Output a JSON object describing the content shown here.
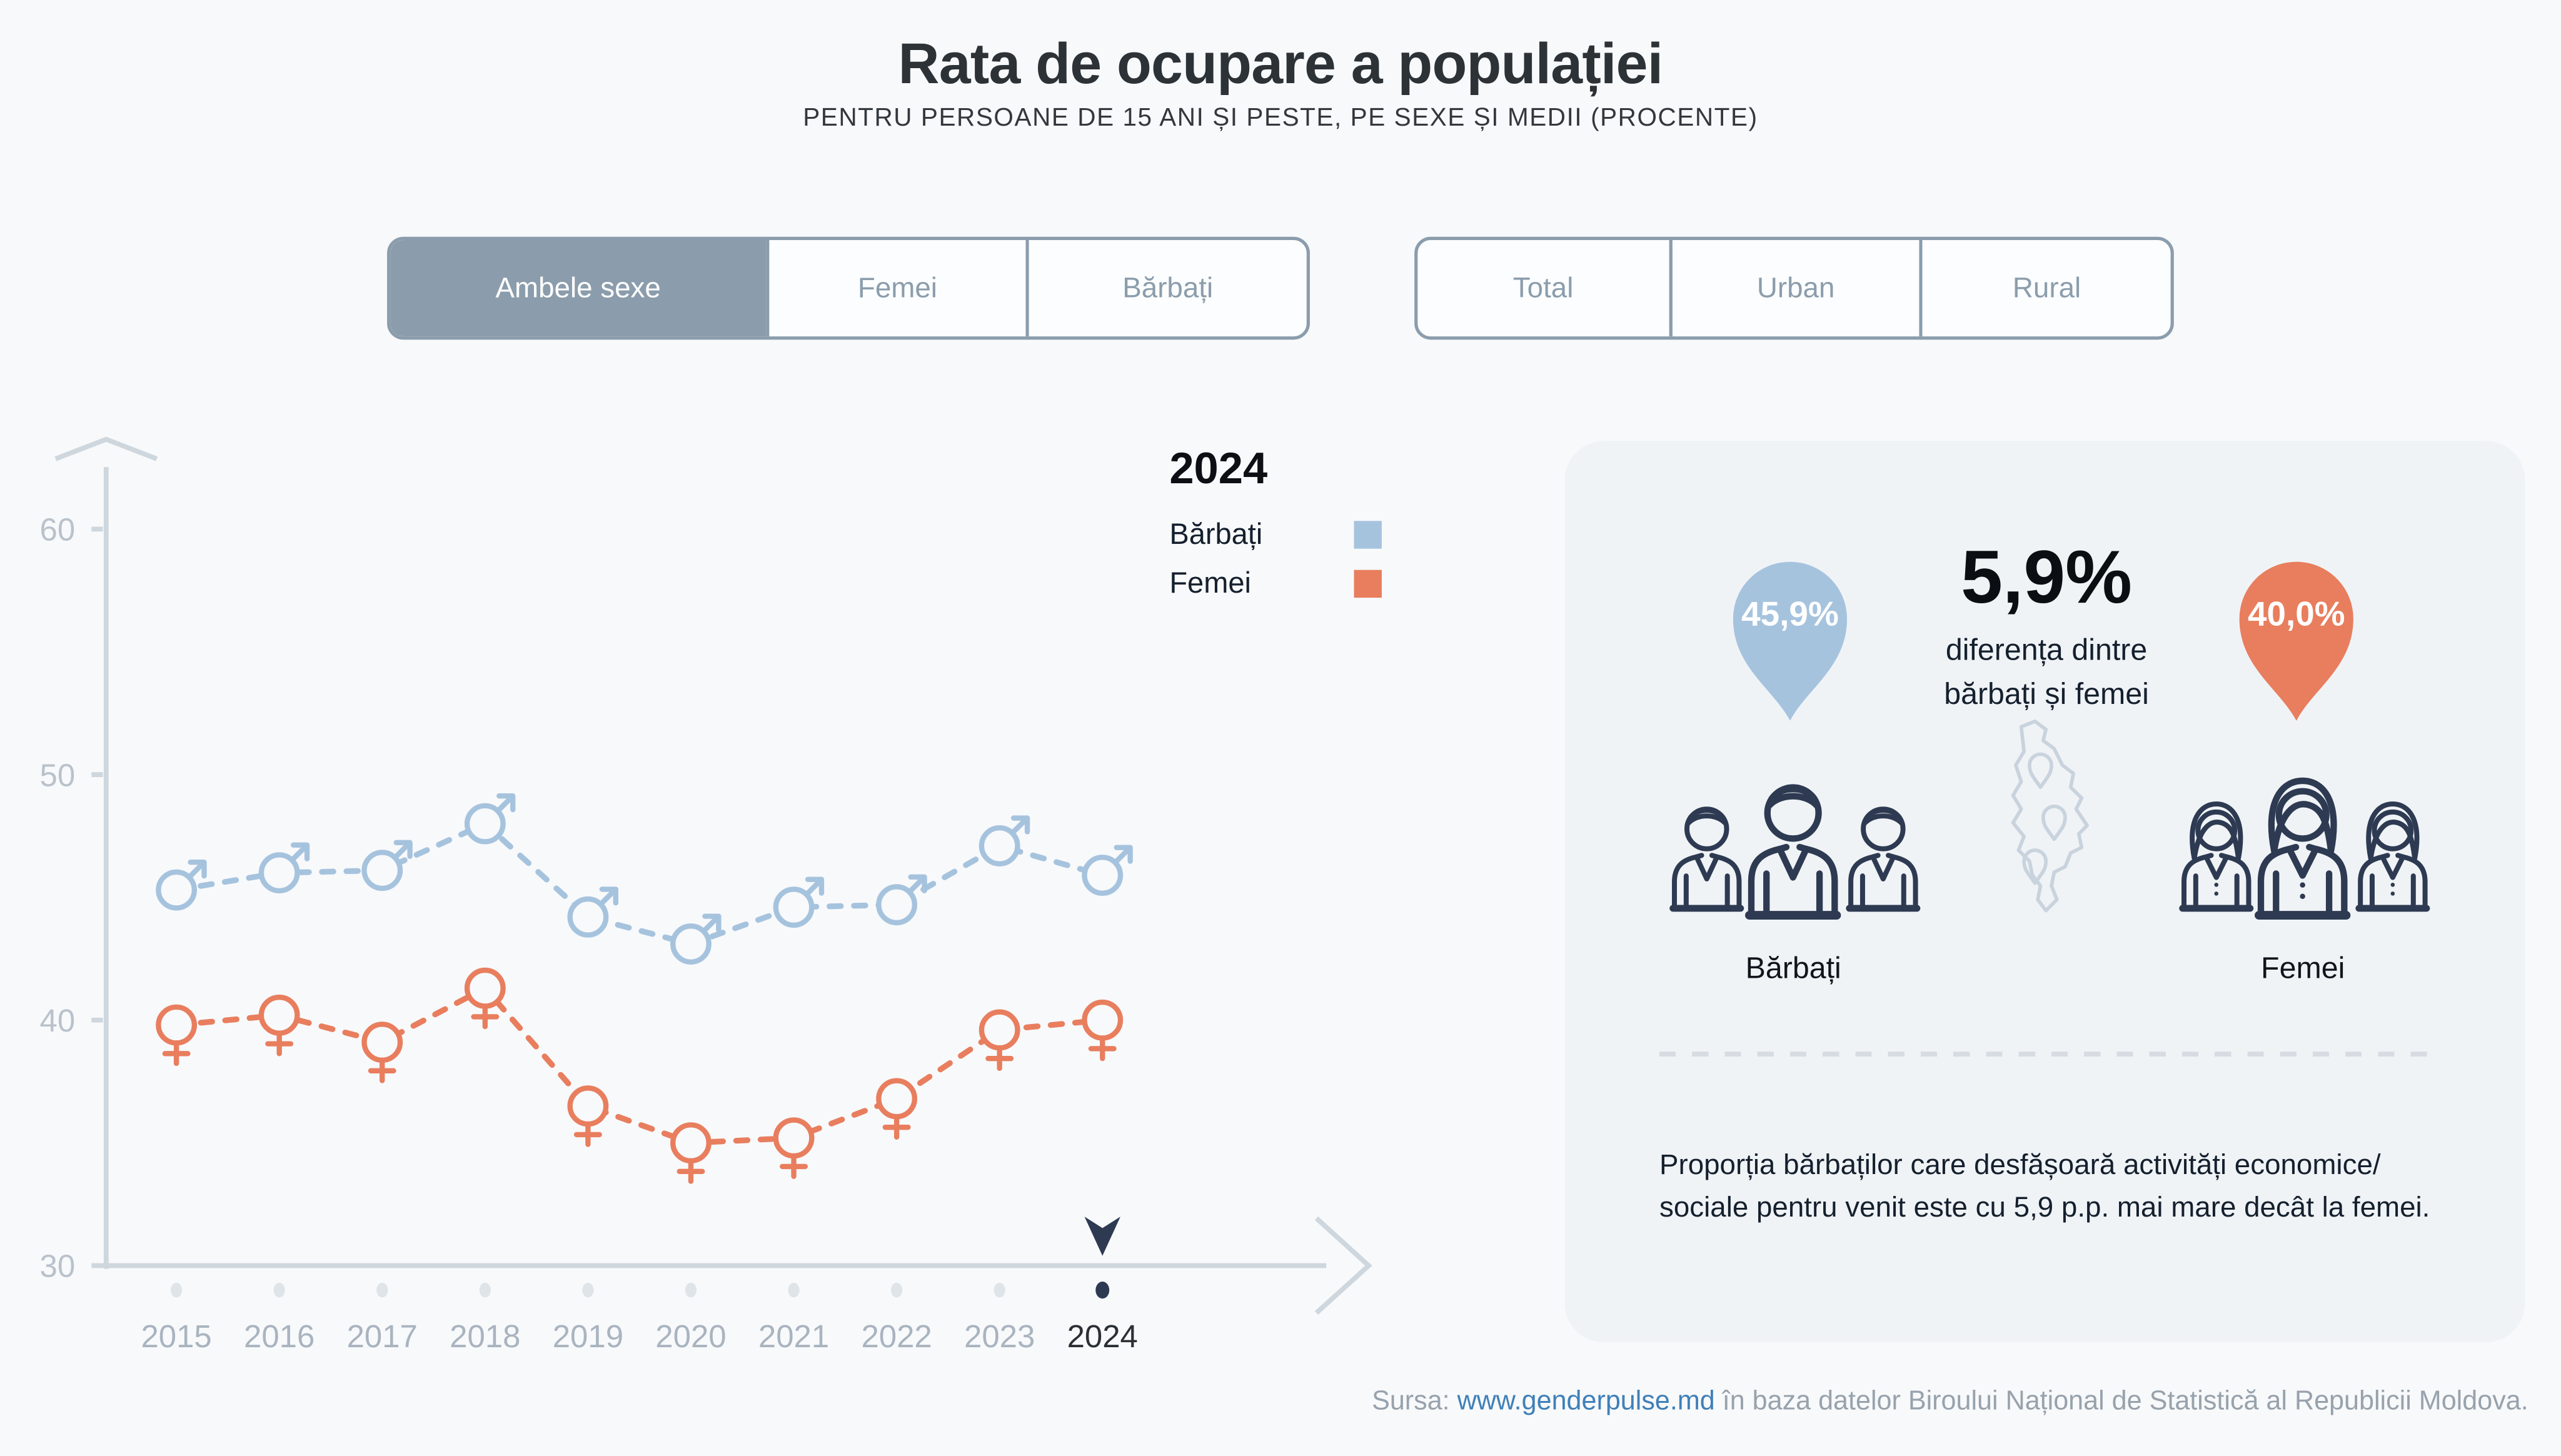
{
  "title": "Rata de ocupare a populației",
  "subtitle": "PENTRU PERSOANE DE 15 ANI ȘI PESTE, PE SEXE ȘI MEDII (PROCENTE)",
  "filters": {
    "sex": {
      "options": [
        "Ambele sexe",
        "Femei",
        "Bărbați"
      ],
      "selected": "Ambele sexe"
    },
    "mediu": {
      "options": [
        "Total",
        "Urban",
        "Rural"
      ],
      "selected": null
    }
  },
  "chart_data": {
    "type": "line",
    "x": [
      "2015",
      "2016",
      "2017",
      "2018",
      "2019",
      "2020",
      "2021",
      "2022",
      "2023",
      "2024"
    ],
    "series": [
      {
        "name": "Bărbați",
        "marker": "male",
        "color": "#a6c3de",
        "values": [
          45.3,
          46.0,
          46.1,
          48.0,
          44.2,
          43.1,
          44.6,
          44.7,
          47.1,
          45.9
        ]
      },
      {
        "name": "Femei",
        "marker": "female",
        "color": "#e87e5e",
        "values": [
          39.8,
          40.2,
          39.1,
          41.3,
          36.5,
          35.0,
          35.2,
          36.8,
          39.6,
          40.0
        ]
      }
    ],
    "ylim": [
      30,
      62
    ],
    "yticks": [
      30,
      40,
      50,
      60
    ],
    "grid": false,
    "line_style": "dashed",
    "legend_year": "2024",
    "legend_position": "top-right",
    "highlight_year": "2024"
  },
  "panel": {
    "male_pin": "45,9%",
    "female_pin": "40,0%",
    "diff_value": "5,9%",
    "diff_line1": "diferența dintre",
    "diff_line2": "bărbați și femei",
    "male_label": "Bărbați",
    "female_label": "Femei",
    "description": "Proporția bărbaților care desfășoară activități economice/ sociale pentru venit este cu 5,9 p.p. mai mare decât la femei."
  },
  "footer": {
    "prefix": "Sursa:",
    "link": "www.genderpulse.md",
    "suffix": "în baza datelor Biroului Național de Statistică al Republicii Moldova."
  },
  "colors": {
    "male": "#a6c3de",
    "female": "#e87e5e",
    "navy": "#2d3a52",
    "axis": "#cfd7de",
    "ytick_label": "#b9c2cb",
    "year_label": "#a9b4bf",
    "year_label_active": "#2b3036",
    "year_dot": "#dfe4e9",
    "accent_button": "#8b9dac",
    "link": "#3f80b8",
    "page_bg": "#f8f9fb",
    "panel_bg": "#f0f3f6"
  }
}
